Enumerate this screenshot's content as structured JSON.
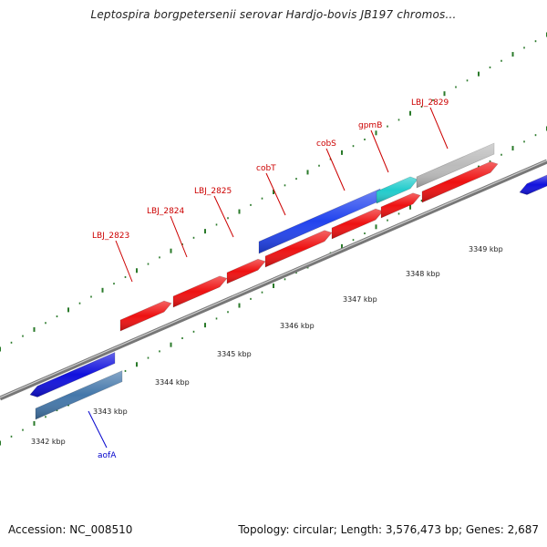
{
  "title": "Leptospira borgpetersenii serovar Hardjo-bovis JB197 chromos...",
  "footer": {
    "accession": "Accession: NC_008510",
    "topology": "Topology: circular; Length: 3,576,473 bp; Genes: 2,687"
  },
  "colors": {
    "forward_gene": "#ee1111",
    "reverse_gene": "#1111dd",
    "cds_blue": "#2244ee",
    "rna_teal": "#22cccc",
    "grey_feature": "#bbbbbb",
    "steelblue_feature": "#4477aa",
    "tick_green": "#2a7a2a",
    "backbone": "#888888",
    "label_red": "#cc0000",
    "label_blue": "#0000cc"
  },
  "scale": {
    "unit": "kbp",
    "labels": [
      "3342 kbp",
      "3343 kbp",
      "3344 kbp",
      "3345 kbp",
      "3346 kbp",
      "3347 kbp",
      "3348 kbp",
      "3349 kbp"
    ]
  },
  "genes": [
    {
      "id": "gene-aofA",
      "label": "aofA",
      "strand": "reverse",
      "color_key": "steelblue_feature"
    },
    {
      "id": "gene-blue-left",
      "label": "",
      "strand": "reverse",
      "color_key": "reverse_gene"
    },
    {
      "id": "gene-LBJ_2823",
      "label": "LBJ_2823",
      "strand": "forward",
      "color_key": "forward_gene"
    },
    {
      "id": "gene-LBJ_2824",
      "label": "LBJ_2824",
      "strand": "forward",
      "color_key": "forward_gene"
    },
    {
      "id": "gene-LBJ_2825",
      "label": "LBJ_2825",
      "strand": "forward",
      "color_key": "forward_gene"
    },
    {
      "id": "gene-cobT",
      "label": "cobT",
      "strand": "forward",
      "color_key": "forward_gene"
    },
    {
      "id": "gene-cobT-cds",
      "label": "",
      "strand": "forward",
      "color_key": "cds_blue"
    },
    {
      "id": "gene-cobS",
      "label": "cobS",
      "strand": "forward",
      "color_key": "forward_gene"
    },
    {
      "id": "gene-gpmB",
      "label": "gpmB",
      "strand": "forward",
      "color_key": "forward_gene"
    },
    {
      "id": "gene-gpmB-rna",
      "label": "",
      "strand": "forward",
      "color_key": "rna_teal"
    },
    {
      "id": "gene-LBJ_2829",
      "label": "LBJ_2829",
      "strand": "forward",
      "color_key": "forward_gene"
    },
    {
      "id": "gene-LBJ_2829-grey",
      "label": "",
      "strand": "forward",
      "color_key": "grey_feature"
    },
    {
      "id": "gene-blue-right",
      "label": "",
      "strand": "reverse",
      "color_key": "reverse_gene"
    }
  ]
}
